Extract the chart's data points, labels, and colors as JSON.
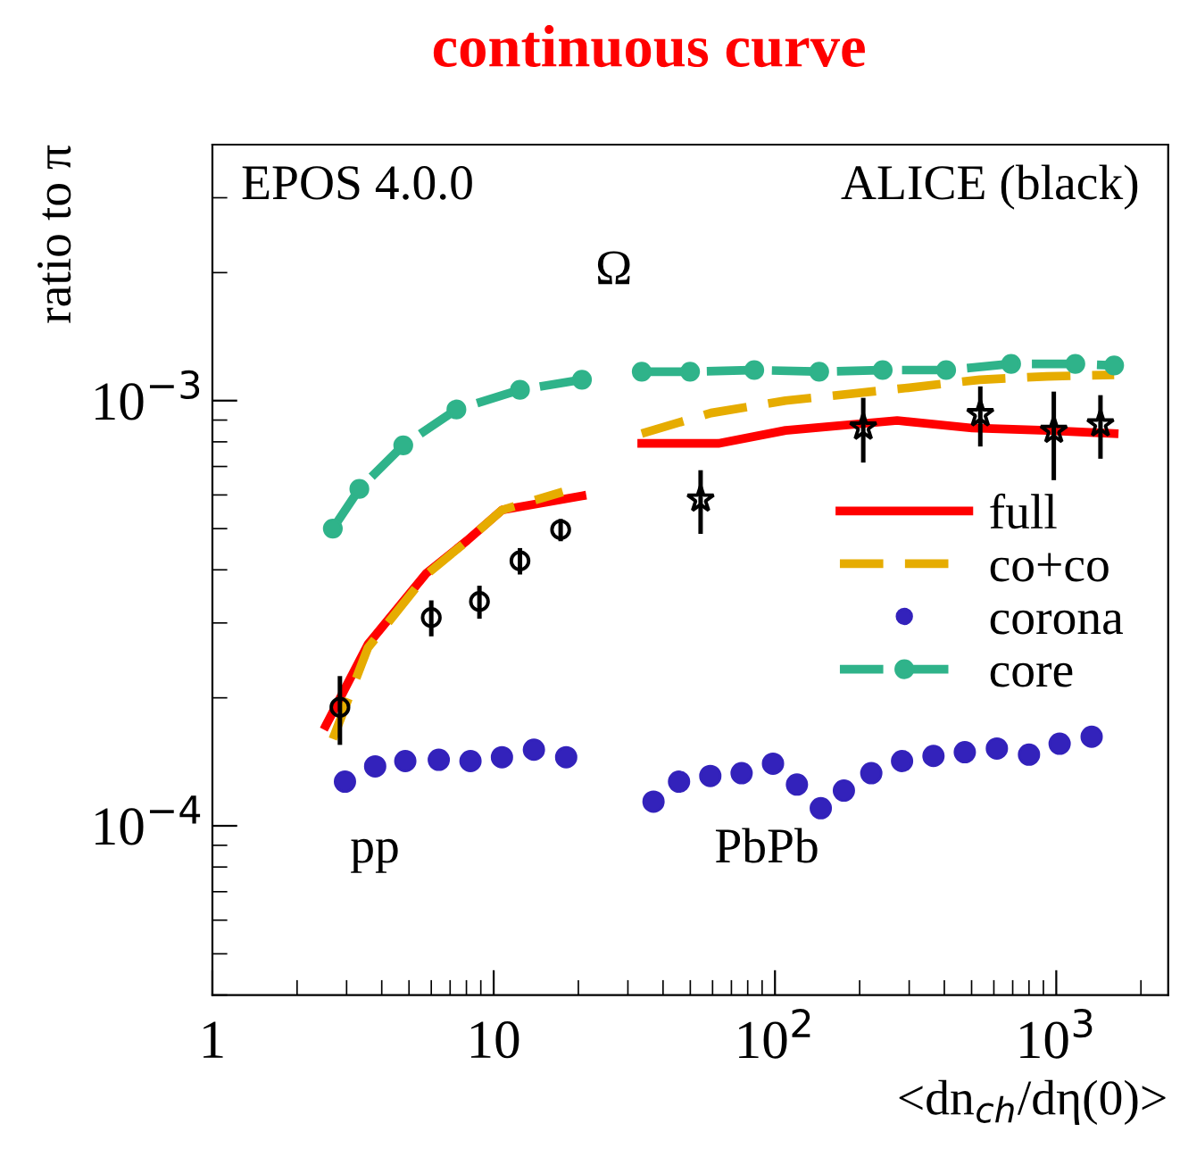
{
  "chart_data": {
    "type": "line",
    "title": "continuous curve",
    "xlabel": "<dn$_{ch}$/dη(0)>",
    "ylabel": "ratio to π",
    "log": "xy",
    "xlim": [
      1,
      2500
    ],
    "ylim": [
      4e-05,
      0.004
    ],
    "xticks": [
      1,
      10,
      {
        "value": 100,
        "label": "10$^{2}$"
      },
      {
        "value": 1000,
        "label": "10$^{3}$"
      }
    ],
    "yticks": [
      {
        "value": 0.0001,
        "label": "10$^{−4}$"
      },
      {
        "value": 0.001,
        "label": "10$^{−3}$"
      }
    ],
    "grid": false,
    "legend": "right",
    "annotations": [
      "EPOS 4.0.0",
      "ALICE (black)",
      "Ω",
      "pp",
      "PbPb"
    ],
    "series": [
      {
        "name": "full",
        "color": "#ff0000",
        "line_style": "solid",
        "marker": "none",
        "x": [
          2.53,
          3.57,
          5.77,
          8.05,
          10.7,
          20.6,
          25,
          33.6,
          62.9,
          109,
          272,
          503,
          926,
          1606
        ],
        "values": [
          0.000172,
          0.000267,
          0.000393,
          0.000469,
          0.000553,
          0.000597,
          null,
          0.000793,
          0.000793,
          0.000851,
          0.000898,
          0.000862,
          0.000851,
          0.000837
        ]
      },
      {
        "name": "co+co",
        "color": "#e6ac00",
        "line_style": "dashed",
        "marker": "none",
        "x": [
          2.68,
          3.57,
          5.77,
          8.05,
          10.7,
          17.6,
          25,
          33.6,
          59.2,
          109,
          290,
          535,
          926,
          1606
        ],
        "values": [
          0.00016,
          0.000262,
          0.00039,
          0.000468,
          0.000553,
          0.00061,
          null,
          0.000837,
          0.000935,
          0.001,
          0.00107,
          0.00112,
          0.00114,
          0.00115
        ]
      },
      {
        "name": "corona",
        "color": "#3322bb",
        "type": "scatter",
        "marker": "circle",
        "x": [
          2.96,
          3.79,
          4.85,
          6.38,
          8.27,
          10.7,
          13.9,
          18.1,
          37.0,
          45.6,
          58.9,
          76.1,
          98.4,
          119.7,
          145.5,
          175.8,
          220,
          283,
          366,
          473,
          615,
          800,
          1028,
          1336
        ],
        "values": [
          0.000127,
          0.000138,
          0.000142,
          0.000143,
          0.000142,
          0.000145,
          0.000151,
          0.000145,
          0.000114,
          0.000127,
          0.000131,
          0.000133,
          0.00014,
          0.000125,
          0.00011,
          0.000121,
          0.000133,
          0.000142,
          0.000146,
          0.000149,
          0.000152,
          0.000147,
          0.000156,
          0.000162
        ]
      },
      {
        "name": "core",
        "color": "#2fb38a",
        "line_style": "dashed",
        "marker": "circle",
        "x": [
          2.68,
          3.33,
          4.77,
          7.37,
          12.4,
          20.6,
          25,
          33.6,
          49.9,
          84.4,
          143.6,
          241.5,
          406,
          691,
          1169,
          1606
        ],
        "values": [
          0.0005,
          0.00062,
          0.000785,
          0.000953,
          0.00106,
          0.00112,
          null,
          0.00117,
          0.00117,
          0.00118,
          0.00117,
          0.00118,
          0.00118,
          0.00122,
          0.00122,
          0.00121
        ]
      },
      {
        "color": "#000000",
        "type": "scatter",
        "marker": "circle",
        "x": [
          2.84,
          6.0,
          8.9,
          12.4,
          17.3
        ],
        "values": [
          0.00019,
          0.000309,
          0.000337,
          0.00042,
          0.000497
        ],
        "errors": [
          3.5e-05,
          3e-05,
          3e-05,
          3e-05,
          3e-05
        ]
      },
      {
        "color": "#000000",
        "type": "scatter",
        "marker": "star",
        "x": [
          54.4,
          206,
          537,
          980,
          1436
        ],
        "values": [
          0.000586,
          0.000865,
          0.00093,
          0.00085,
          0.00088
        ],
        "errors": [
          0.0001,
          0.00015,
          0.00015,
          0.0002,
          0.00015
        ]
      }
    ]
  }
}
